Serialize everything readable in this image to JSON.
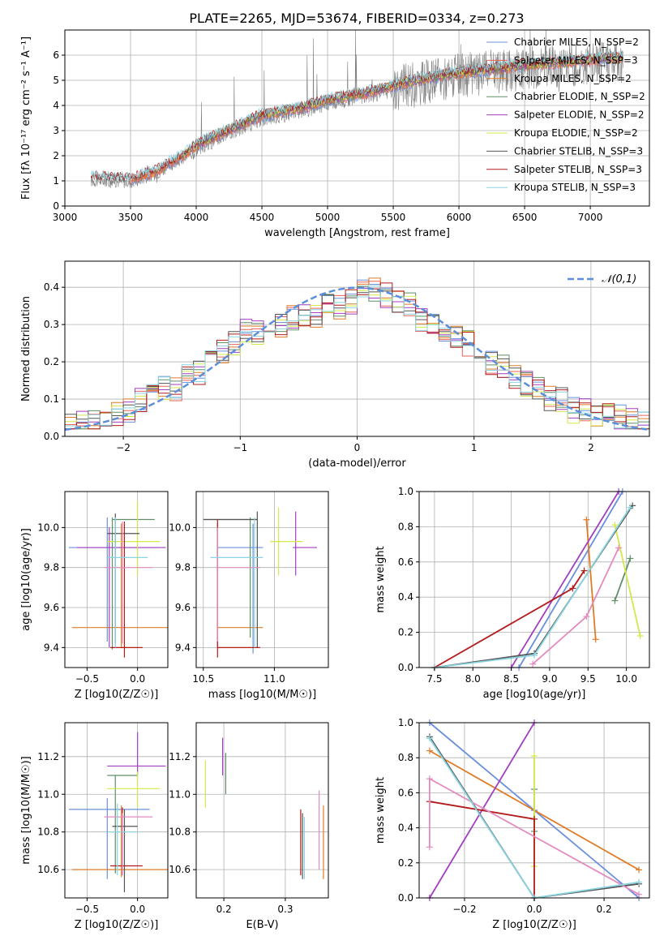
{
  "title": "PLATE=2265, MJD=53674, FIBERID=0334, z=0.273",
  "colors": {
    "Chabrier MILES": "#6a8fdc",
    "Salpeter MILES": "#e8605a",
    "Kroupa MILES": "#e07b26",
    "Chabrier ELODIE": "#5f8f68",
    "Salpeter ELODIE": "#a23fbf",
    "Kroupa ELODIE": "#d4e84a",
    "Chabrier STELIB": "#555555",
    "Salpeter STELIB": "#b31b1b",
    "Kroupa STELIB": "#8ad4e0",
    "Chabrier MILES (weights)": "#6a8fdc",
    "pink": "#e38bbf",
    "data": "#808080",
    "gauss": "#5b8fd9"
  },
  "chart_data": [
    {
      "type": "line",
      "name": "spectrum",
      "xlabel": "wavelength [Angstrom, rest frame]",
      "ylabel": "Flux [fλ 10⁻¹⁷ erg cm⁻² s⁻¹ A⁻¹]",
      "xlim": [
        3000,
        7450
      ],
      "ylim": [
        0,
        7
      ],
      "xticks": [
        3000,
        3500,
        4000,
        4500,
        5000,
        5500,
        6000,
        6500,
        7000
      ],
      "yticks": [
        0,
        1,
        2,
        3,
        4,
        5,
        6
      ],
      "legend_position": "top-right",
      "legend": [
        "Chabrier MILES, N_SSP=2",
        "Salpeter MILES, N_SSP=3",
        "Kroupa MILES, N_SSP=2",
        "Chabrier ELODIE, N_SSP=2",
        "Salpeter ELODIE, N_SSP=2",
        "Kroupa ELODIE, N_SSP=2",
        "Chabrier STELIB, N_SSP=3",
        "Salpeter STELIB, N_SSP=3",
        "Kroupa STELIB, N_SSP=3"
      ],
      "continuum": {
        "x": [
          3200,
          3300,
          3500,
          3700,
          3900,
          4000,
          4200,
          4500,
          4800,
          5000,
          5300,
          5600,
          5900,
          6200,
          6500,
          6800,
          7200
        ],
        "y": [
          1.0,
          1.0,
          0.95,
          1.3,
          1.9,
          2.3,
          2.8,
          3.5,
          3.8,
          4.1,
          4.4,
          4.8,
          5.1,
          5.3,
          5.5,
          5.6,
          5.8
        ]
      }
    },
    {
      "type": "bar",
      "name": "residual-histogram",
      "xlabel": "(data-model)/error",
      "ylabel": "Normed distribution",
      "xlim": [
        -2.5,
        2.5
      ],
      "ylim": [
        0,
        0.47
      ],
      "xticks": [
        -2,
        -1,
        0,
        1,
        2
      ],
      "yticks": [
        0.0,
        0.1,
        0.2,
        0.3,
        0.4
      ],
      "legend": [
        "𝒩(0,1)"
      ],
      "legend_position": "top-right",
      "bins": [
        -2.5,
        -2.4,
        -2.3,
        -2.2,
        -2.1,
        -2.0,
        -1.9,
        -1.8,
        -1.7,
        -1.6,
        -1.5,
        -1.4,
        -1.3,
        -1.2,
        -1.1,
        -1.0,
        -0.9,
        -0.8,
        -0.7,
        -0.6,
        -0.5,
        -0.4,
        -0.3,
        -0.2,
        -0.1,
        0.0,
        0.1,
        0.2,
        0.3,
        0.4,
        0.5,
        0.6,
        0.7,
        0.8,
        0.9,
        1.0,
        1.1,
        1.2,
        1.3,
        1.4,
        1.5,
        1.6,
        1.7,
        1.8,
        1.9,
        2.0,
        2.1,
        2.2,
        2.3,
        2.4,
        2.5
      ],
      "base_values": [
        0.035,
        0.04,
        0.04,
        0.045,
        0.06,
        0.07,
        0.1,
        0.12,
        0.13,
        0.13,
        0.16,
        0.17,
        0.2,
        0.23,
        0.25,
        0.28,
        0.28,
        0.31,
        0.3,
        0.32,
        0.32,
        0.32,
        0.36,
        0.35,
        0.36,
        0.4,
        0.39,
        0.38,
        0.36,
        0.35,
        0.31,
        0.31,
        0.29,
        0.27,
        0.25,
        0.24,
        0.2,
        0.19,
        0.16,
        0.14,
        0.13,
        0.1,
        0.1,
        0.07,
        0.07,
        0.06,
        0.06,
        0.05,
        0.04,
        0.035
      ]
    },
    {
      "type": "scatter",
      "name": "age-vs-Z",
      "xlabel": "Z [log10(Z/Z☉)]",
      "ylabel": "age [log10(age/yr)]",
      "xlim": [
        -0.72,
        0.3
      ],
      "ylim": [
        9.3,
        10.18
      ],
      "xticks": [
        -0.5,
        0.0
      ],
      "yticks": [
        9.4,
        9.6,
        9.8,
        10.0
      ],
      "points": [
        {
          "c": "#6a8fdc",
          "x": -0.3,
          "xe": [
            -0.68,
            0.2
          ],
          "y": 9.9,
          "ye": [
            9.43,
            10.05
          ]
        },
        {
          "c": "#e07b26",
          "x": -0.16,
          "xe": [
            -0.65,
            0.3
          ],
          "y": 9.5,
          "ye": [
            9.4,
            10.02
          ]
        },
        {
          "c": "#5f8f68",
          "x": -0.25,
          "xe": [
            -0.25,
            0.17
          ],
          "y": 10.04,
          "ye": [
            9.39,
            10.05
          ]
        },
        {
          "c": "#a23fbf",
          "x": -0.28,
          "xe": [
            -0.6,
            0.28
          ],
          "y": 9.9,
          "ye": [
            9.4,
            10.0
          ]
        },
        {
          "c": "#d4e84a",
          "x": 0.0,
          "xe": [
            -0.3,
            0.22
          ],
          "y": 9.93,
          "ye": [
            9.76,
            10.13
          ]
        },
        {
          "c": "#555555",
          "x": -0.22,
          "xe": [
            -0.3,
            0.02
          ],
          "y": 9.97,
          "ye": [
            9.42,
            10.07
          ]
        },
        {
          "c": "#b31b1b",
          "x": -0.13,
          "xe": [
            -0.27,
            0.05
          ],
          "y": 9.4,
          "ye": [
            9.35,
            10.03
          ]
        },
        {
          "c": "#e38bbf",
          "x": -0.15,
          "xe": [
            -0.33,
            0.15
          ],
          "y": 9.8,
          "ye": [
            9.42,
            10.03
          ]
        },
        {
          "c": "#8ad4e0",
          "x": -0.22,
          "xe": [
            -0.3,
            0.1
          ],
          "y": 9.85,
          "ye": [
            9.4,
            10.05
          ]
        }
      ]
    },
    {
      "type": "scatter",
      "name": "age-vs-mass",
      "xlabel": "mass [log10(M/M☉)]",
      "xlim": [
        10.45,
        11.38
      ],
      "ylim": [
        9.3,
        10.18
      ],
      "xticks": [
        10.5,
        11.0
      ],
      "yticks": [
        9.4,
        9.6,
        9.8,
        10.0
      ],
      "points": [
        {
          "c": "#6a8fdc",
          "x": 10.85,
          "xe": [
            10.6,
            10.92
          ],
          "y": 9.9,
          "ye": [
            9.37,
            10.02
          ]
        },
        {
          "c": "#e07b26",
          "x": 10.6,
          "xe": [
            10.6,
            10.92
          ],
          "y": 9.5,
          "ye": [
            9.4,
            10.02
          ]
        },
        {
          "c": "#5f8f68",
          "x": 10.83,
          "xe": [
            10.5,
            10.88
          ],
          "y": 10.04,
          "ye": [
            9.45,
            10.05
          ]
        },
        {
          "c": "#a23fbf",
          "x": 11.15,
          "xe": [
            11.13,
            11.3
          ],
          "y": 9.9,
          "ye": [
            9.76,
            10.08
          ]
        },
        {
          "c": "#d4e84a",
          "x": 11.03,
          "xe": [
            10.97,
            11.2
          ],
          "y": 9.93,
          "ye": [
            9.76,
            10.1
          ]
        },
        {
          "c": "#555555",
          "x": 10.88,
          "xe": [
            10.5,
            10.88
          ],
          "y": 10.04,
          "ye": [
            9.4,
            10.08
          ]
        },
        {
          "c": "#b31b1b",
          "x": 10.6,
          "xe": [
            10.6,
            10.9
          ],
          "y": 9.4,
          "ye": [
            9.35,
            10.04
          ]
        },
        {
          "c": "#e38bbf",
          "x": 10.6,
          "xe": [
            10.6,
            10.9
          ],
          "y": 9.8,
          "ye": [
            9.43,
            10.0
          ]
        },
        {
          "c": "#8ad4e0",
          "x": 10.86,
          "xe": [
            10.55,
            10.92
          ],
          "y": 9.85,
          "ye": [
            9.4,
            10.05
          ]
        }
      ]
    },
    {
      "type": "line",
      "name": "weight-vs-age",
      "xlabel": "age [log10(age/yr)]",
      "ylabel": "mass weight",
      "xlim": [
        7.3,
        10.3
      ],
      "ylim": [
        0,
        1.0
      ],
      "xticks": [
        7.5,
        8.0,
        8.5,
        9.0,
        9.5,
        10.0
      ],
      "yticks": [
        0.0,
        0.2,
        0.4,
        0.6,
        0.8,
        1.0
      ],
      "series": [
        {
          "c": "#6a8fdc",
          "x": [
            8.6,
            9.95
          ],
          "y": [
            0.0,
            1.0
          ]
        },
        {
          "c": "#e07b26",
          "x": [
            9.48,
            9.6
          ],
          "y": [
            0.84,
            0.16
          ]
        },
        {
          "c": "#5f8f68",
          "x": [
            9.85,
            10.05
          ],
          "y": [
            0.38,
            0.62
          ]
        },
        {
          "c": "#a23fbf",
          "x": [
            8.5,
            9.9
          ],
          "y": [
            0.0,
            1.0
          ]
        },
        {
          "c": "#d4e84a",
          "x": [
            9.85,
            10.18
          ],
          "y": [
            0.81,
            0.18
          ]
        },
        {
          "c": "#555555",
          "x": [
            7.5,
            8.8,
            10.08
          ],
          "y": [
            0.0,
            0.08,
            0.92
          ]
        },
        {
          "c": "#b31b1b",
          "x": [
            7.5,
            9.3,
            9.45
          ],
          "y": [
            0.0,
            0.45,
            0.55
          ]
        },
        {
          "c": "#e38bbf",
          "x": [
            8.78,
            9.48,
            9.9
          ],
          "y": [
            0.02,
            0.29,
            0.68
          ]
        },
        {
          "c": "#8ad4e0",
          "x": [
            7.5,
            8.8,
            10.05
          ],
          "y": [
            0.0,
            0.07,
            0.91
          ]
        }
      ]
    },
    {
      "type": "scatter",
      "name": "mass-vs-Z",
      "xlabel": "Z [log10(Z/Z☉)]",
      "ylabel": "mass [log10(M/M☉)]",
      "xlim": [
        -0.72,
        0.3
      ],
      "ylim": [
        10.45,
        11.38
      ],
      "xticks": [
        -0.5,
        0.0
      ],
      "yticks": [
        10.6,
        10.8,
        11.0,
        11.2
      ],
      "points": [
        {
          "c": "#6a8fdc",
          "x": -0.3,
          "xe": [
            -0.68,
            0.12
          ],
          "y": 10.92,
          "ye": [
            10.55,
            10.98
          ]
        },
        {
          "c": "#e07b26",
          "x": -0.16,
          "xe": [
            -0.65,
            0.3
          ],
          "y": 10.6,
          "ye": [
            10.56,
            10.94
          ]
        },
        {
          "c": "#5f8f68",
          "x": -0.22,
          "xe": [
            -0.3,
            0.0
          ],
          "y": 11.1,
          "ye": [
            10.58,
            11.1
          ]
        },
        {
          "c": "#a23fbf",
          "x": 0.0,
          "xe": [
            -0.3,
            0.28
          ],
          "y": 11.15,
          "ye": [
            11.1,
            11.33
          ]
        },
        {
          "c": "#d4e84a",
          "x": 0.0,
          "xe": [
            -0.3,
            0.22
          ],
          "y": 11.03,
          "ye": [
            10.93,
            11.12
          ]
        },
        {
          "c": "#555555",
          "x": -0.13,
          "xe": [
            -0.25,
            0.0
          ],
          "y": 10.83,
          "ye": [
            10.48,
            10.92
          ]
        },
        {
          "c": "#b31b1b",
          "x": -0.15,
          "xe": [
            -0.27,
            0.05
          ],
          "y": 10.62,
          "ye": [
            10.57,
            10.93
          ]
        },
        {
          "c": "#e38bbf",
          "x": -0.15,
          "xe": [
            -0.33,
            0.15
          ],
          "y": 10.88,
          "ye": [
            10.57,
            10.9
          ]
        },
        {
          "c": "#8ad4e0",
          "x": -0.2,
          "xe": [
            -0.3,
            0.0
          ],
          "y": 10.8,
          "ye": [
            10.57,
            10.95
          ]
        }
      ]
    },
    {
      "type": "scatter",
      "name": "mass-vs-EBV",
      "xlabel": "E(B-V)",
      "xlim": [
        0.155,
        0.37
      ],
      "ylim": [
        10.45,
        11.38
      ],
      "xticks": [
        0.2,
        0.3
      ],
      "yticks": [
        10.6,
        10.8,
        11.0,
        11.2
      ],
      "points": [
        {
          "c": "#d4e84a",
          "x": 0.17,
          "y": 11.05,
          "ye": [
            10.93,
            11.18
          ]
        },
        {
          "c": "#a23fbf",
          "x": 0.198,
          "y": 11.15,
          "ye": [
            11.1,
            11.3
          ]
        },
        {
          "c": "#5f8f68",
          "x": 0.203,
          "y": 11.1,
          "ye": [
            11.0,
            11.22
          ]
        },
        {
          "c": "#b31b1b",
          "x": 0.325,
          "y": 10.75,
          "ye": [
            10.57,
            10.92
          ]
        },
        {
          "c": "#555555",
          "x": 0.328,
          "y": 10.72,
          "ye": [
            10.55,
            10.9
          ]
        },
        {
          "c": "#8ad4e0",
          "x": 0.331,
          "y": 10.72,
          "ye": [
            10.55,
            10.88
          ]
        },
        {
          "c": "#e38bbf",
          "x": 0.355,
          "y": 10.8,
          "ye": [
            10.6,
            11.02
          ]
        },
        {
          "c": "#e07b26",
          "x": 0.362,
          "y": 10.75,
          "ye": [
            10.55,
            10.94
          ]
        }
      ]
    },
    {
      "type": "line",
      "name": "weight-vs-Z",
      "xlabel": "Z [log10(Z/Z☉)]",
      "ylabel": "mass weight",
      "xlim": [
        -0.33,
        0.33
      ],
      "ylim": [
        0,
        1.0
      ],
      "xticks": [
        -0.2,
        0.0,
        0.2
      ],
      "yticks": [
        0.0,
        0.2,
        0.4,
        0.6,
        0.8,
        1.0
      ],
      "series": [
        {
          "c": "#6a8fdc",
          "x": [
            -0.3,
            0.0
          ],
          "y": [
            1.0,
            0.5
          ]
        },
        {
          "c": "#6a8fdc",
          "x": [
            0.0,
            0.3
          ],
          "y": [
            0.5,
            0.0
          ]
        },
        {
          "c": "#e07b26",
          "x": [
            -0.3,
            0.3
          ],
          "y": [
            0.84,
            0.16
          ]
        },
        {
          "c": "#5f8f68",
          "x": [
            0.0,
            0.0
          ],
          "y": [
            0.38,
            0.62
          ]
        },
        {
          "c": "#a23fbf",
          "x": [
            -0.3,
            0.0
          ],
          "y": [
            0.0,
            1.0
          ]
        },
        {
          "c": "#d4e84a",
          "x": [
            0.0,
            0.0
          ],
          "y": [
            0.18,
            0.81
          ]
        },
        {
          "c": "#555555",
          "x": [
            -0.3,
            0.0,
            0.3
          ],
          "y": [
            0.92,
            0.0,
            0.08
          ]
        },
        {
          "c": "#b31b1b",
          "x": [
            -0.3,
            0.0,
            0.0
          ],
          "y": [
            0.55,
            0.45,
            0.0
          ]
        },
        {
          "c": "#e38bbf",
          "x": [
            -0.3,
            -0.3,
            0.3
          ],
          "y": [
            0.29,
            0.68,
            0.02
          ]
        },
        {
          "c": "#8ad4e0",
          "x": [
            -0.3,
            0.0,
            0.3
          ],
          "y": [
            0.91,
            0.0,
            0.09
          ]
        }
      ]
    }
  ]
}
